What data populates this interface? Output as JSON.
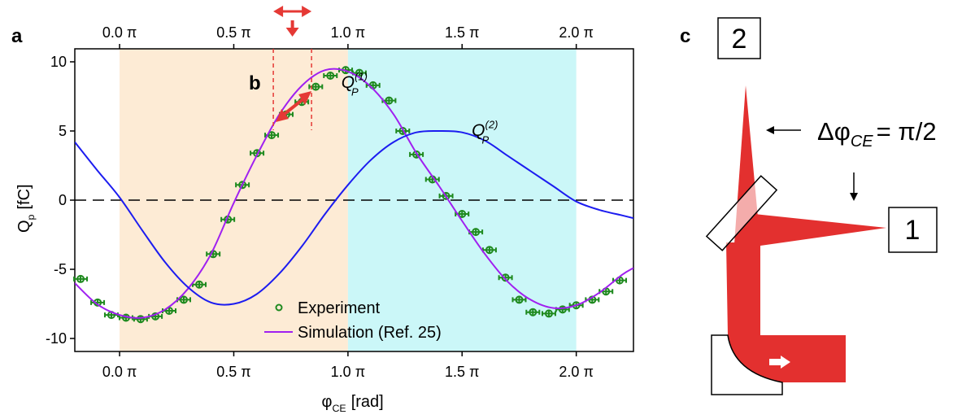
{
  "panel_labels": [
    "a",
    "b",
    "c"
  ],
  "chart_data": {
    "type": "line",
    "xlabel": {
      "main": "φ",
      "sub": "CE",
      "unit": "[rad]"
    },
    "ylabel": {
      "main": "Q",
      "sub": "p",
      "unit": "[fC]"
    },
    "xlim": [
      -0.616,
      7.07
    ],
    "ylim": [
      -10.94,
      10.94
    ],
    "xticks": [
      {
        "value": 0,
        "label": "0.0 π"
      },
      {
        "value": 1.571,
        "label": "0.5 π"
      },
      {
        "value": 3.142,
        "label": "1.0 π"
      },
      {
        "value": 4.712,
        "label": "1.5 π"
      },
      {
        "value": 6.283,
        "label": "2.0 π"
      }
    ],
    "yticks": [
      10,
      5,
      0,
      -5,
      -10
    ],
    "bands": [
      {
        "from": 0,
        "to": 3.142,
        "color": "#fdebd5"
      },
      {
        "from": 3.142,
        "to": 6.283,
        "color": "#cbf7f8"
      }
    ],
    "reference_line": 0,
    "marked_range": [
      2.115,
      2.641
    ],
    "legend": "lower center",
    "series": [
      {
        "name": "Experiment",
        "type": "scatter",
        "color": "#1f8a1f",
        "x": [
          -0.537,
          -0.302,
          -0.113,
          0.088,
          0.289,
          0.493,
          0.682,
          0.883,
          1.096,
          1.288,
          1.489,
          1.69,
          1.891,
          2.092,
          2.293,
          2.507,
          2.699,
          2.9,
          3.11,
          3.299,
          3.487,
          3.707,
          3.896,
          4.084,
          4.304,
          4.492,
          4.712,
          4.901,
          5.089,
          5.309,
          5.498,
          5.686,
          5.906,
          6.095,
          6.283,
          6.503,
          6.692,
          6.88
        ],
        "values": [
          -5.7,
          -7.4,
          -8.3,
          -8.5,
          -8.6,
          -8.4,
          -8.0,
          -7.2,
          -6.1,
          -3.9,
          -1.4,
          1.1,
          3.4,
          4.7,
          6.2,
          7.1,
          8.2,
          9.0,
          9.4,
          9.2,
          8.3,
          7.2,
          5.0,
          3.3,
          1.5,
          0.3,
          -1.0,
          -2.3,
          -3.6,
          -5.6,
          -7.2,
          -8.1,
          -8.2,
          -7.9,
          -7.6,
          -7.2,
          -6.6,
          -5.8
        ]
      },
      {
        "name": "Simulation (Ref. 25)",
        "color": "#a020f0",
        "label": {
          "main": "Q",
          "sub": "P",
          "sup": "(1)"
        },
        "x": [
          -0.616,
          -0.314,
          0,
          0.314,
          0.628,
          0.942,
          1.257,
          1.571,
          1.885,
          2.199,
          2.513,
          2.827,
          3.142,
          3.456,
          3.77,
          4.084,
          4.398,
          4.712,
          5.027,
          5.341,
          5.655,
          5.969,
          6.283,
          6.597,
          6.912,
          7.07
        ],
        "values": [
          -6.0,
          -7.5,
          -8.3,
          -8.5,
          -7.9,
          -6.4,
          -3.9,
          -0.2,
          3.2,
          6.2,
          8.3,
          9.4,
          9.3,
          8.2,
          6.2,
          3.4,
          1.0,
          -1.5,
          -3.9,
          -5.9,
          -7.2,
          -7.8,
          -7.6,
          -6.7,
          -5.4,
          -4.9
        ]
      },
      {
        "color": "#1c1cf0",
        "label": {
          "main": "Q",
          "sub": "P",
          "sup": "(2)"
        },
        "x": [
          -0.616,
          -0.314,
          0,
          0.314,
          0.628,
          0.942,
          1.257,
          1.571,
          1.885,
          2.199,
          2.513,
          2.827,
          3.142,
          3.456,
          3.77,
          4.084,
          4.398,
          4.712,
          5.027,
          5.341,
          5.655,
          5.969,
          6.283,
          6.597,
          6.912,
          7.07
        ],
        "values": [
          4.2,
          2.2,
          0.2,
          -2.2,
          -4.5,
          -6.3,
          -7.4,
          -7.5,
          -6.8,
          -5.3,
          -3.3,
          -1.0,
          1.1,
          2.9,
          4.2,
          4.9,
          5.0,
          4.9,
          4.3,
          3.2,
          2.1,
          1.0,
          -0.1,
          -0.7,
          -1.1,
          -1.3
        ]
      }
    ]
  },
  "diagram": {
    "boxes": [
      "2",
      "1"
    ],
    "phase": {
      "main": "Δφ",
      "sub": "CE",
      "rest": "= π/2"
    }
  }
}
